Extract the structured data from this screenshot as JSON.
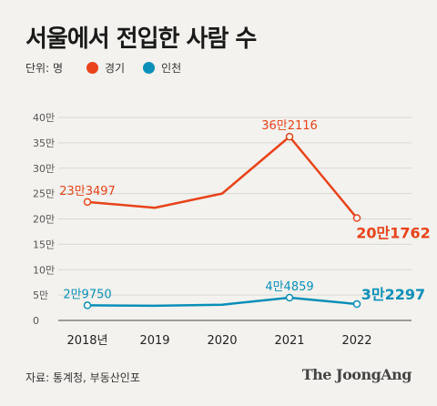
{
  "header": {
    "title": "서울에서 전입한 사람 수"
  },
  "legend": {
    "unit": "단위: 명",
    "items": [
      {
        "name": "경기",
        "color": "#e8431a"
      },
      {
        "name": "인천",
        "color": "#0a8fb8"
      }
    ]
  },
  "chart_data": {
    "type": "line",
    "categories": [
      "2018년",
      "2019",
      "2020",
      "2021",
      "2022"
    ],
    "y_tick_labels": [
      "0",
      "5만",
      "10만",
      "15만",
      "20만",
      "25만",
      "30만",
      "35만",
      "40만"
    ],
    "ylim": [
      0,
      400000
    ],
    "grid": true,
    "series": [
      {
        "name": "경기",
        "color": "#e8431a",
        "values": [
          233497,
          222000,
          250000,
          362116,
          201762
        ],
        "labels": [
          "23만3497",
          "",
          "",
          "36만2116",
          "20만1762"
        ]
      },
      {
        "name": "인천",
        "color": "#0a8fb8",
        "values": [
          29750,
          29000,
          31000,
          44859,
          32297
        ],
        "labels": [
          "2만9750",
          "",
          "",
          "4만4859",
          "3만2297"
        ]
      }
    ]
  },
  "footer": {
    "source": "자료: 통계청, 부동산인포",
    "brand": "The JoongAng"
  }
}
